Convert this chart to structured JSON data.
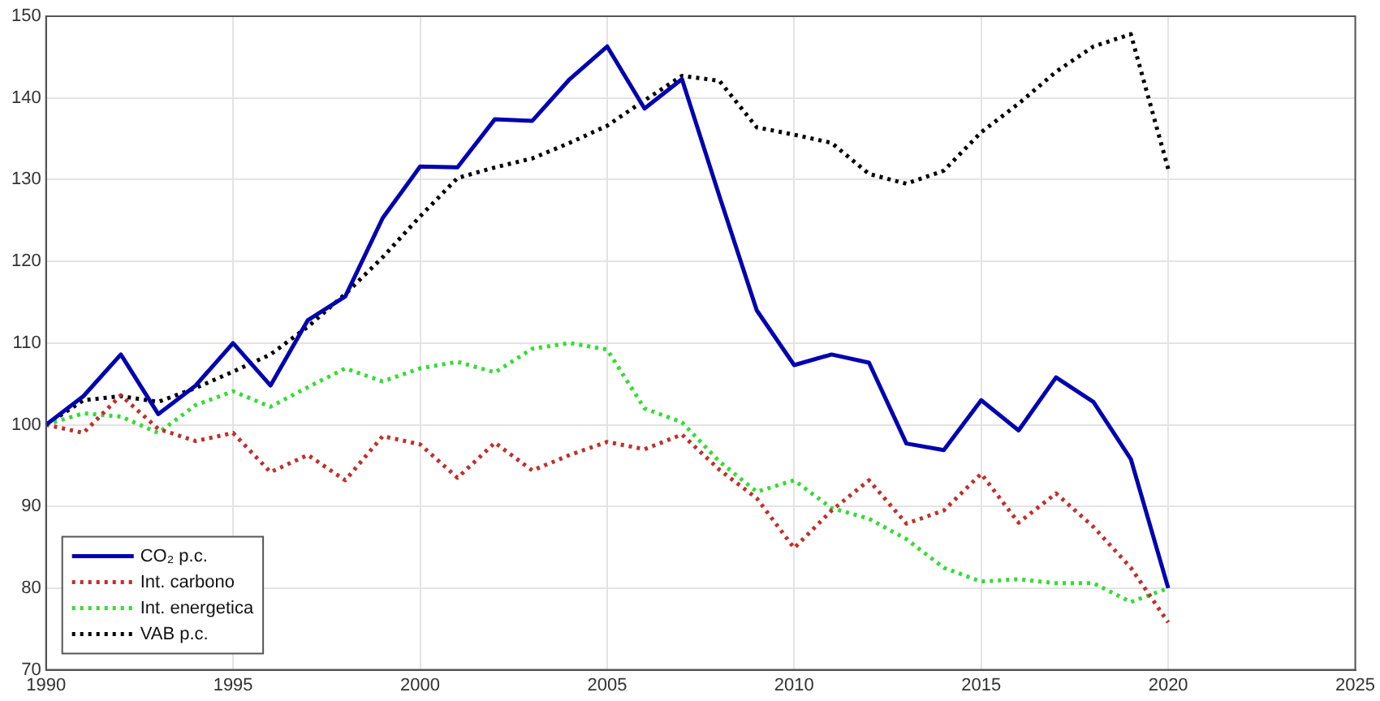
{
  "chart_data": {
    "type": "line",
    "x": [
      1990,
      1991,
      1992,
      1993,
      1994,
      1995,
      1996,
      1997,
      1998,
      1999,
      2000,
      2001,
      2002,
      2003,
      2004,
      2005,
      2006,
      2007,
      2008,
      2009,
      2010,
      2011,
      2012,
      2013,
      2014,
      2015,
      2016,
      2017,
      2018,
      2019,
      2020
    ],
    "series": [
      {
        "name": "CO₂ p.c.",
        "color": "#0000b0",
        "line_style": "solid",
        "values": [
          100,
          103.5,
          108.6,
          101.3,
          104.8,
          110,
          104.8,
          112.8,
          115.7,
          125.3,
          131.6,
          131.5,
          137.4,
          137.2,
          142.3,
          146.3,
          138.7,
          142.3,
          128,
          114,
          107.3,
          108.6,
          107.6,
          97.7,
          96.9,
          103,
          99.3,
          105.8,
          102.8,
          95.8,
          80
        ]
      },
      {
        "name": "Int. carbono",
        "color": "#c0302a",
        "line_style": "dotted",
        "values": [
          100,
          99,
          103.6,
          99.5,
          98,
          99,
          94.2,
          96.3,
          93.2,
          98.6,
          97.6,
          93.5,
          97.8,
          94.4,
          96.3,
          97.9,
          97,
          98.8,
          94.5,
          91,
          84.9,
          89.5,
          93.2,
          87.9,
          89.5,
          94,
          88,
          91.6,
          87.5,
          82.5,
          75.8
        ]
      },
      {
        "name": "Int. energetica",
        "color": "#33dd33",
        "line_style": "dotted",
        "values": [
          100,
          101.4,
          101,
          99,
          102.4,
          104.1,
          102.2,
          104.6,
          106.9,
          105.3,
          106.9,
          107.7,
          106.4,
          109.3,
          110,
          109.2,
          102,
          100.3,
          95.5,
          91.8,
          93.2,
          89.8,
          88.5,
          86,
          82.5,
          80.8,
          81.1,
          80.6,
          80.6,
          78.3,
          80
        ]
      },
      {
        "name": "VAB p.c.",
        "color": "#000000",
        "line_style": "dotted",
        "values": [
          100,
          103,
          103.5,
          102.8,
          104.5,
          106.5,
          108.6,
          112,
          116,
          120.5,
          125.5,
          130.2,
          131.5,
          132.6,
          134.5,
          136.6,
          139.7,
          142.7,
          142.1,
          136.4,
          135.5,
          134.5,
          130.7,
          129.5,
          131.1,
          135.8,
          139.3,
          143.2,
          146.3,
          147.8,
          131.3
        ]
      }
    ],
    "xlim": [
      1990,
      2025
    ],
    "xticks": [
      1990,
      1995,
      2000,
      2005,
      2010,
      2015,
      2020,
      2025
    ],
    "ylim": [
      70,
      150
    ],
    "yticks": [
      70,
      80,
      90,
      100,
      110,
      120,
      130,
      140,
      150
    ],
    "grid": true,
    "legend": "bottom left",
    "marker": "none"
  }
}
